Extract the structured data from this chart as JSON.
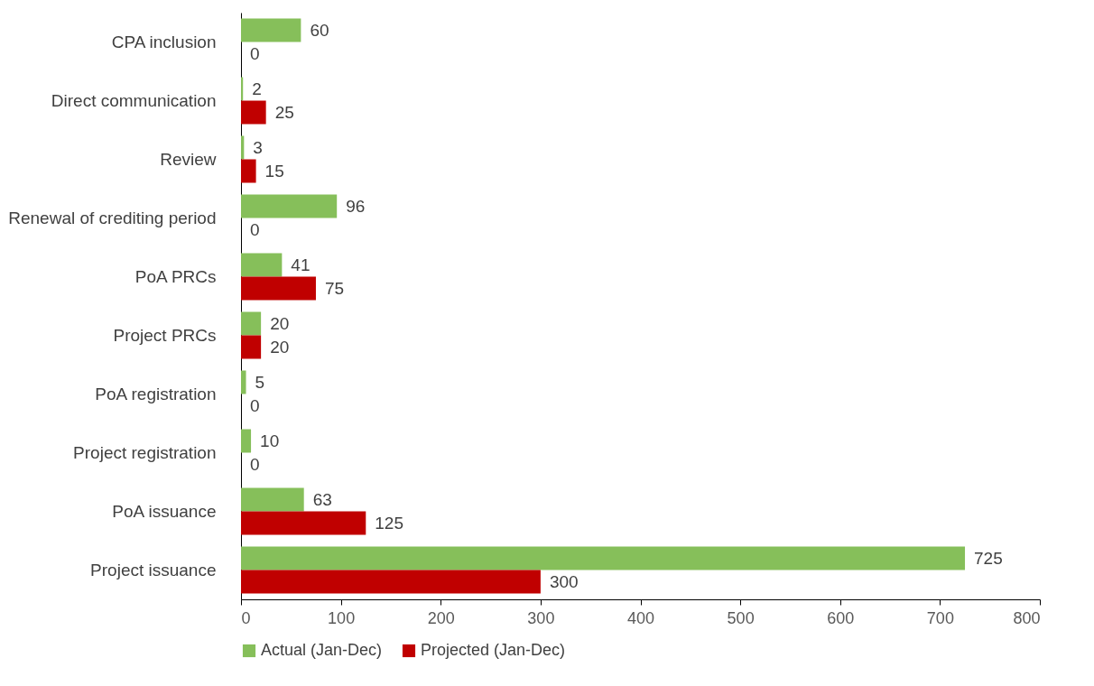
{
  "chart_data": {
    "type": "bar",
    "orientation": "horizontal",
    "categories": [
      "CPA inclusion",
      "Direct communication",
      "Review",
      "Renewal of crediting period",
      "PoA PRCs",
      "Project PRCs",
      "PoA registration",
      "Project registration",
      "PoA issuance",
      "Project issuance"
    ],
    "series": [
      {
        "name": "Actual (Jan-Dec)",
        "color": "#86bf5a",
        "values": [
          60,
          2,
          3,
          96,
          41,
          20,
          5,
          10,
          63,
          725
        ]
      },
      {
        "name": "Projected (Jan-Dec)",
        "color": "#c00000",
        "values": [
          0,
          25,
          15,
          0,
          75,
          20,
          0,
          0,
          125,
          300
        ]
      }
    ],
    "xlim": [
      0,
      800
    ],
    "xticks": [
      0,
      100,
      200,
      300,
      400,
      500,
      600,
      700,
      800
    ],
    "data_labels": true,
    "legend": "bottom",
    "grid": false
  }
}
